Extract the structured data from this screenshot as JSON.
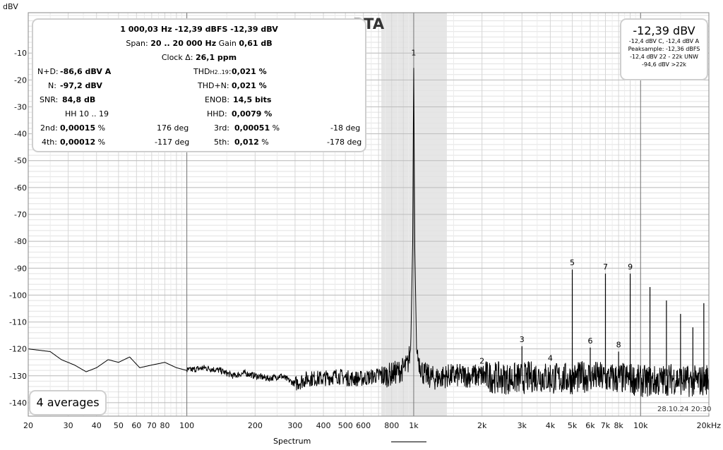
{
  "chart_data": {
    "type": "line",
    "title": "RTA",
    "ylabel": "dBV",
    "xlabel": "",
    "x_scale": "log",
    "xlim": [
      20,
      20000
    ],
    "ylim": [
      -145,
      5
    ],
    "x_ticks": [
      20,
      30,
      40,
      50,
      60,
      70,
      80,
      100,
      200,
      300,
      400,
      500,
      600,
      800,
      1000,
      2000,
      3000,
      4000,
      5000,
      6000,
      7000,
      8000,
      10000,
      20000
    ],
    "x_tick_labels": [
      "20",
      "30",
      "40",
      "50",
      "60",
      "70",
      "80",
      "100",
      "200",
      "300",
      "400",
      "500",
      "600",
      "800",
      "1k",
      "2k",
      "3k",
      "4k",
      "5k",
      "6k",
      "7k",
      "8k",
      "10k",
      "20kHz"
    ],
    "y_ticks": [
      -10,
      -20,
      -30,
      -40,
      -50,
      -60,
      -70,
      -80,
      -90,
      -100,
      -110,
      -120,
      -130,
      -140
    ],
    "y_tick_labels": [
      "-10",
      "-20",
      "-30",
      "-40",
      "-50",
      "-60",
      "-70",
      "-80",
      "-90",
      "-100",
      "-110",
      "-120",
      "-130",
      "-140"
    ],
    "grid": true,
    "shaded_band": [
      720,
      1400
    ],
    "series": [
      {
        "name": "Spectrum",
        "color": "#000000",
        "x": [
          20,
          25,
          28,
          32,
          36,
          40,
          45,
          50,
          56,
          62,
          70,
          80,
          90,
          100,
          120,
          140,
          160,
          180,
          200,
          230,
          260,
          300,
          340,
          400,
          460,
          520,
          600,
          680,
          750,
          820,
          880,
          940,
          970,
          990,
          1000,
          1010,
          1030,
          1060,
          1100,
          1150,
          1250,
          1400,
          1600,
          2000,
          2500,
          3000,
          3500,
          4000,
          5000,
          6000,
          7000,
          8000,
          9000,
          10000,
          12000,
          14000,
          16000,
          18000,
          20000
        ],
        "y": [
          -120,
          -121,
          -124,
          -126,
          -128.5,
          -127,
          -124,
          -125,
          -123,
          -127,
          -126,
          -125,
          -127,
          -128,
          -127,
          -128,
          -130,
          -129,
          -130,
          -131,
          -130,
          -133,
          -131,
          -131,
          -130,
          -131,
          -131,
          -130,
          -130,
          -129,
          -128,
          -126,
          -120,
          -80,
          -12.4,
          -80,
          -121,
          -125,
          -129,
          -130,
          -131,
          -130,
          -130,
          -130,
          -131,
          -131,
          -130,
          -131,
          -131,
          -130,
          -131,
          -131,
          -131,
          -132,
          -132,
          -131,
          -132,
          -132,
          -131
        ]
      }
    ],
    "peaks": [
      {
        "label": "1",
        "x": 1000,
        "y": -12.4
      },
      {
        "label": "2",
        "x": 2000,
        "y": -127
      },
      {
        "label": "3",
        "x": 3000,
        "y": -119
      },
      {
        "label": "4",
        "x": 4000,
        "y": -126
      },
      {
        "label": "5",
        "x": 5000,
        "y": -90.5
      },
      {
        "label": "6",
        "x": 6000,
        "y": -119.5
      },
      {
        "label": "7",
        "x": 7000,
        "y": -92
      },
      {
        "label": "8",
        "x": 8000,
        "y": -121
      },
      {
        "label": "9",
        "x": 9000,
        "y": -92
      },
      {
        "label": "",
        "x": 11000,
        "y": -97
      },
      {
        "label": "",
        "x": 13000,
        "y": -102
      },
      {
        "label": "",
        "x": 15000,
        "y": -107
      },
      {
        "label": "",
        "x": 17000,
        "y": -112
      },
      {
        "label": "",
        "x": 19000,
        "y": -103
      }
    ]
  },
  "stats": {
    "line1": "1 000,03 Hz  -12,39 dBFS  -12,39 dBV",
    "span_label": "Span: ",
    "span_value": "20 .. 20 000 Hz",
    "gain_label": "  Gain ",
    "gain_value": "0,61 dB",
    "clock_label": "Clock Δ: ",
    "clock_value": "26,1 ppm",
    "nd_label": "N+D:",
    "nd_value": "-86,6 dBV A",
    "n_label": "N:",
    "n_value": "-97,2 dBV",
    "snr_label": "SNR:",
    "snr_value": "84,8 dB",
    "hh_label": "HH 10 .. 19",
    "thd_label": "THD",
    "thd_sub": "H2..19",
    "thd_colon": ":",
    "thd_value": "0,021 %",
    "thdn_label": "THD+N:",
    "thdn_value": "0,021 %",
    "enob_label": "ENOB:",
    "enob_value": "14,5 bits",
    "hhd_label": "HHD:",
    "hhd_value": "0,0079 %",
    "h2_label": "2nd:",
    "h2_value": "0,00015",
    "h2_unit": " %",
    "h2_phase": "176 deg",
    "h3_label": "3rd:",
    "h3_value": "0,00051",
    "h3_unit": " %",
    "h3_phase": "-18 deg",
    "h4_label": "4th:",
    "h4_value": "0,00012",
    "h4_unit": " %",
    "h4_phase": "-117 deg",
    "h5_label": "5th:",
    "h5_value": "0,012",
    "h5_unit": " %",
    "h5_phase": "-178 deg"
  },
  "levels": {
    "main": "-12,39 dBV",
    "line2": "-12,4 dBV C, -12,4 dBV A",
    "line3": "Peaksample: -12,36 dBFS",
    "line4": "-12,4 dBV 22 - 22k UNW",
    "line5": "-94,6 dBV >22k"
  },
  "averages": "4 averages",
  "timestamp": "28.10.24 20:30",
  "legend_label": "Spectrum"
}
